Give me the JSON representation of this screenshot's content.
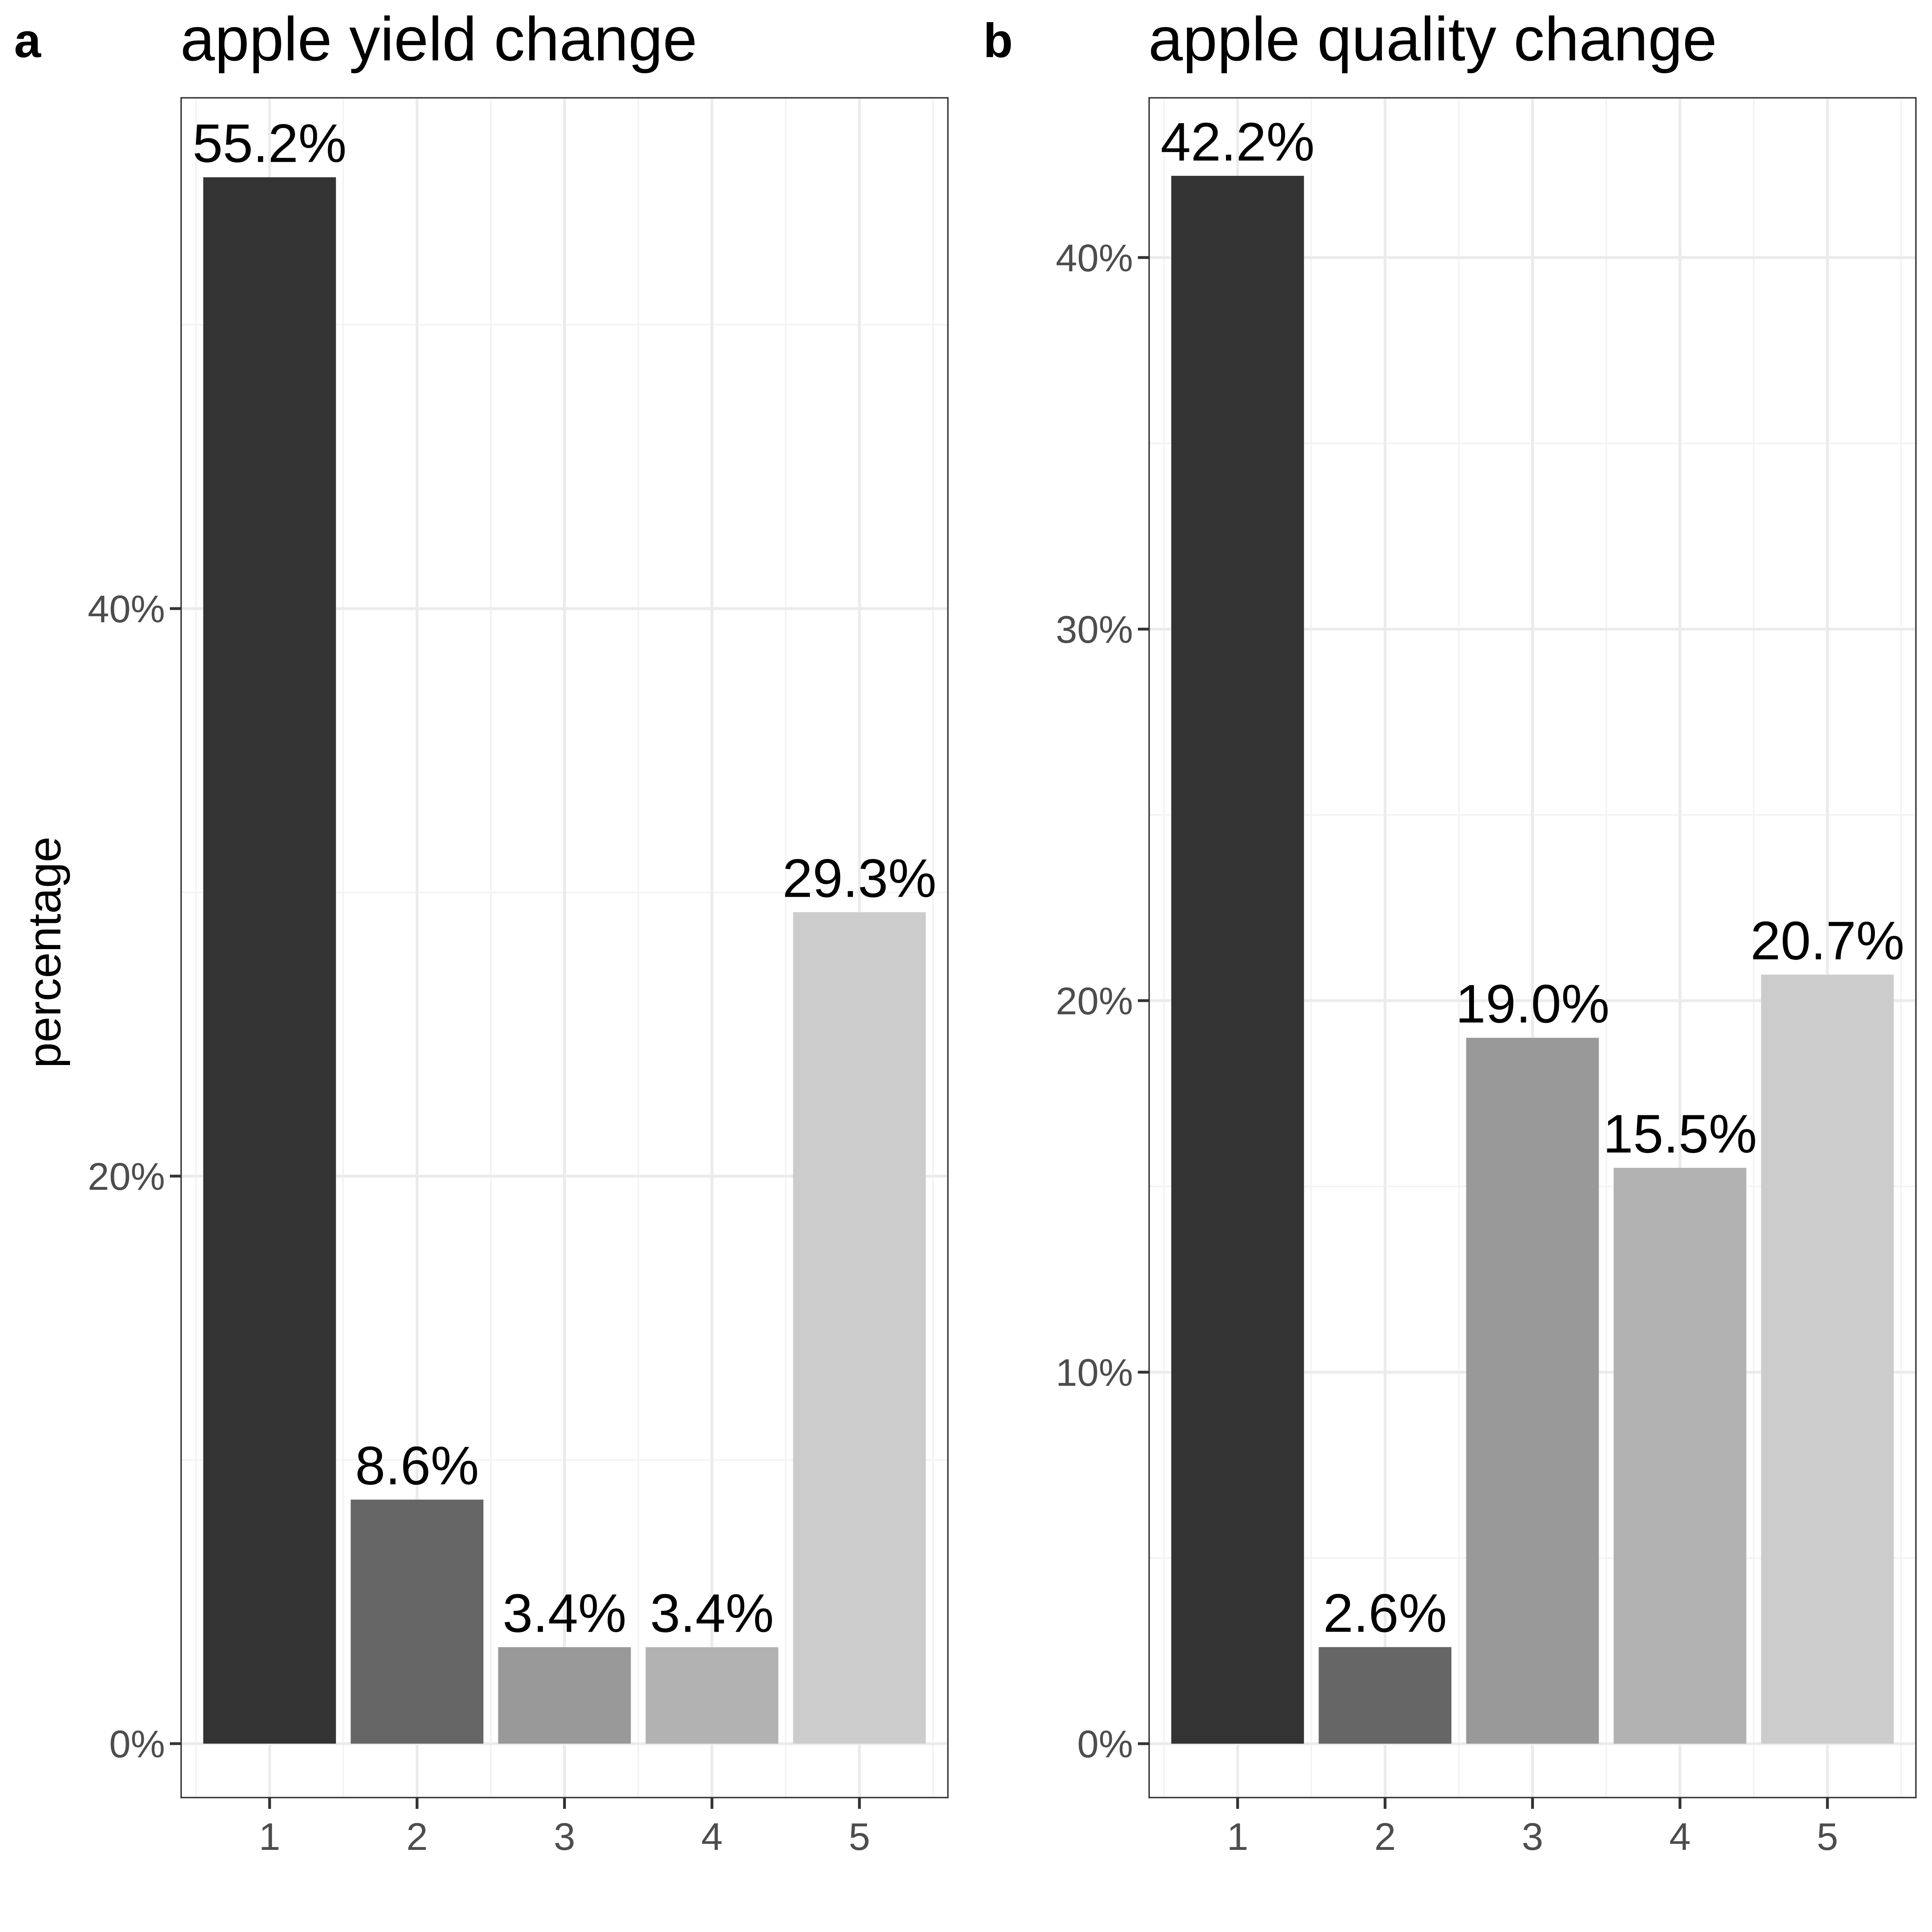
{
  "figure": {
    "y_axis_title": "percentage"
  },
  "chart_data": [
    {
      "type": "bar",
      "panel_tag": "a",
      "title": "apple yield change",
      "ylabel": "percentage",
      "xlabel": "",
      "categories": [
        "1",
        "2",
        "3",
        "4",
        "5"
      ],
      "values": [
        55.2,
        8.6,
        3.4,
        3.4,
        29.3
      ],
      "data_labels": [
        "55.2%",
        "8.6%",
        "3.4%",
        "3.4%",
        "29.3%"
      ],
      "ylim": [
        -1.9,
        58.0
      ],
      "y_ticks": [
        0,
        20,
        40
      ],
      "y_tick_labels": [
        "0%",
        "20%",
        "40%"
      ],
      "bar_colors": [
        "#333333",
        "#666666",
        "#999999",
        "#b2b2b2",
        "#cccccc"
      ],
      "grid": true
    },
    {
      "type": "bar",
      "panel_tag": "b",
      "title": "apple quality change",
      "ylabel": "",
      "xlabel": "",
      "categories": [
        "1",
        "2",
        "3",
        "4",
        "5"
      ],
      "values": [
        42.2,
        2.6,
        19.0,
        15.5,
        20.7
      ],
      "data_labels": [
        "42.2%",
        "2.6%",
        "19.0%",
        "15.5%",
        "20.7%"
      ],
      "ylim": [
        -1.45,
        44.3
      ],
      "y_ticks": [
        0,
        10,
        20,
        30,
        40
      ],
      "y_tick_labels": [
        "0%",
        "10%",
        "20%",
        "30%",
        "40%"
      ],
      "bar_colors": [
        "#333333",
        "#666666",
        "#999999",
        "#b2b2b2",
        "#cccccc"
      ],
      "grid": true
    }
  ]
}
